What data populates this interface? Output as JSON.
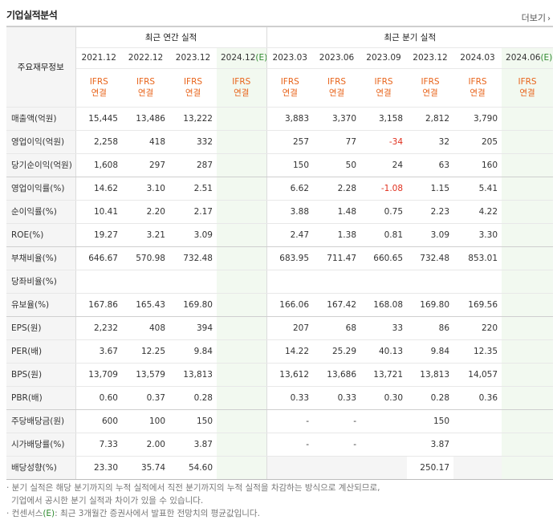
{
  "header": {
    "title": "기업실적분석",
    "more_label": "더보기",
    "more_icon": "chevron-right-icon"
  },
  "table": {
    "label_header": "주요재무정보",
    "groups": {
      "annual": "최근 연간 실적",
      "quarterly": "최근 분기 실적"
    },
    "periods": [
      {
        "name": "2021.12"
      },
      {
        "name": "2022.12"
      },
      {
        "name": "2023.12"
      },
      {
        "name": "2024.12",
        "est": "(E)"
      },
      {
        "name": "2023.03"
      },
      {
        "name": "2023.06"
      },
      {
        "name": "2023.09"
      },
      {
        "name": "2023.12"
      },
      {
        "name": "2024.03"
      },
      {
        "name": "2024.06",
        "est": "(E)"
      }
    ],
    "ifrs_top": "IFRS",
    "ifrs_bottom": "연결",
    "rows": [
      {
        "label": "매출액(억원)",
        "values": [
          "15,445",
          "13,486",
          "13,222",
          "",
          "3,883",
          "3,370",
          "3,158",
          "2,812",
          "3,790",
          ""
        ]
      },
      {
        "label": "영업이익(억원)",
        "values": [
          "2,258",
          "418",
          "332",
          "",
          "257",
          "77",
          "-34",
          "32",
          "205",
          ""
        ]
      },
      {
        "label": "당기순이익(억원)",
        "values": [
          "1,608",
          "297",
          "287",
          "",
          "150",
          "50",
          "24",
          "63",
          "160",
          ""
        ]
      },
      {
        "label": "영업이익률(%)",
        "values": [
          "14.62",
          "3.10",
          "2.51",
          "",
          "6.62",
          "2.28",
          "-1.08",
          "1.15",
          "5.41",
          ""
        ]
      },
      {
        "label": "순이익률(%)",
        "values": [
          "10.41",
          "2.20",
          "2.17",
          "",
          "3.88",
          "1.48",
          "0.75",
          "2.23",
          "4.22",
          ""
        ]
      },
      {
        "label": "ROE(%)",
        "values": [
          "19.27",
          "3.21",
          "3.09",
          "",
          "2.47",
          "1.38",
          "0.81",
          "3.09",
          "3.30",
          ""
        ]
      },
      {
        "label": "부채비율(%)",
        "values": [
          "646.67",
          "570.98",
          "732.48",
          "",
          "683.95",
          "711.47",
          "660.65",
          "732.48",
          "853.01",
          ""
        ]
      },
      {
        "label": "당좌비율(%)",
        "values": [
          "",
          "",
          "",
          "",
          "",
          "",
          "",
          "",
          "",
          ""
        ]
      },
      {
        "label": "유보율(%)",
        "values": [
          "167.86",
          "165.43",
          "169.80",
          "",
          "166.06",
          "167.42",
          "168.08",
          "169.80",
          "169.56",
          ""
        ]
      },
      {
        "label": "EPS(원)",
        "values": [
          "2,232",
          "408",
          "394",
          "",
          "207",
          "68",
          "33",
          "86",
          "220",
          ""
        ]
      },
      {
        "label": "PER(배)",
        "values": [
          "3.67",
          "12.25",
          "9.84",
          "",
          "14.22",
          "25.29",
          "40.13",
          "9.84",
          "12.35",
          ""
        ]
      },
      {
        "label": "BPS(원)",
        "values": [
          "13,709",
          "13,579",
          "13,813",
          "",
          "13,612",
          "13,686",
          "13,721",
          "13,813",
          "14,057",
          ""
        ]
      },
      {
        "label": "PBR(배)",
        "values": [
          "0.60",
          "0.37",
          "0.28",
          "",
          "0.33",
          "0.33",
          "0.30",
          "0.28",
          "0.36",
          ""
        ]
      },
      {
        "label": "주당배당금(원)",
        "values": [
          "600",
          "100",
          "150",
          "",
          "-",
          "-",
          "",
          "150",
          "",
          ""
        ]
      },
      {
        "label": "시가배당률(%)",
        "values": [
          "7.33",
          "2.00",
          "3.87",
          "",
          "-",
          "-",
          "",
          "3.87",
          "",
          ""
        ]
      },
      {
        "label": "배당성향(%)",
        "values": [
          "23.30",
          "35.74",
          "54.60",
          "",
          "",
          "",
          "",
          "250.17",
          "",
          ""
        ]
      }
    ]
  },
  "notes": {
    "line1": "· 분기 실적은 해당 분기까지의 누적 실적에서 직전 분기까지의 누적 실적을 차감하는 방식으로 계산되므로,",
    "line2": "  기업에서 공시한 분기 실적과 차이가 있을 수 있습니다.",
    "line3_pre": "· 컨센서스",
    "line3_e": "(E)",
    "line3_post": ": 최근 3개월간 증권사에서 발표한 전망치의 평균값입니다."
  },
  "colors": {
    "ifrs": "#e8641b",
    "negative": "#e0301e",
    "estimate_bg": "#f2f9f0",
    "estimate_mark": "#2f8a2f"
  }
}
